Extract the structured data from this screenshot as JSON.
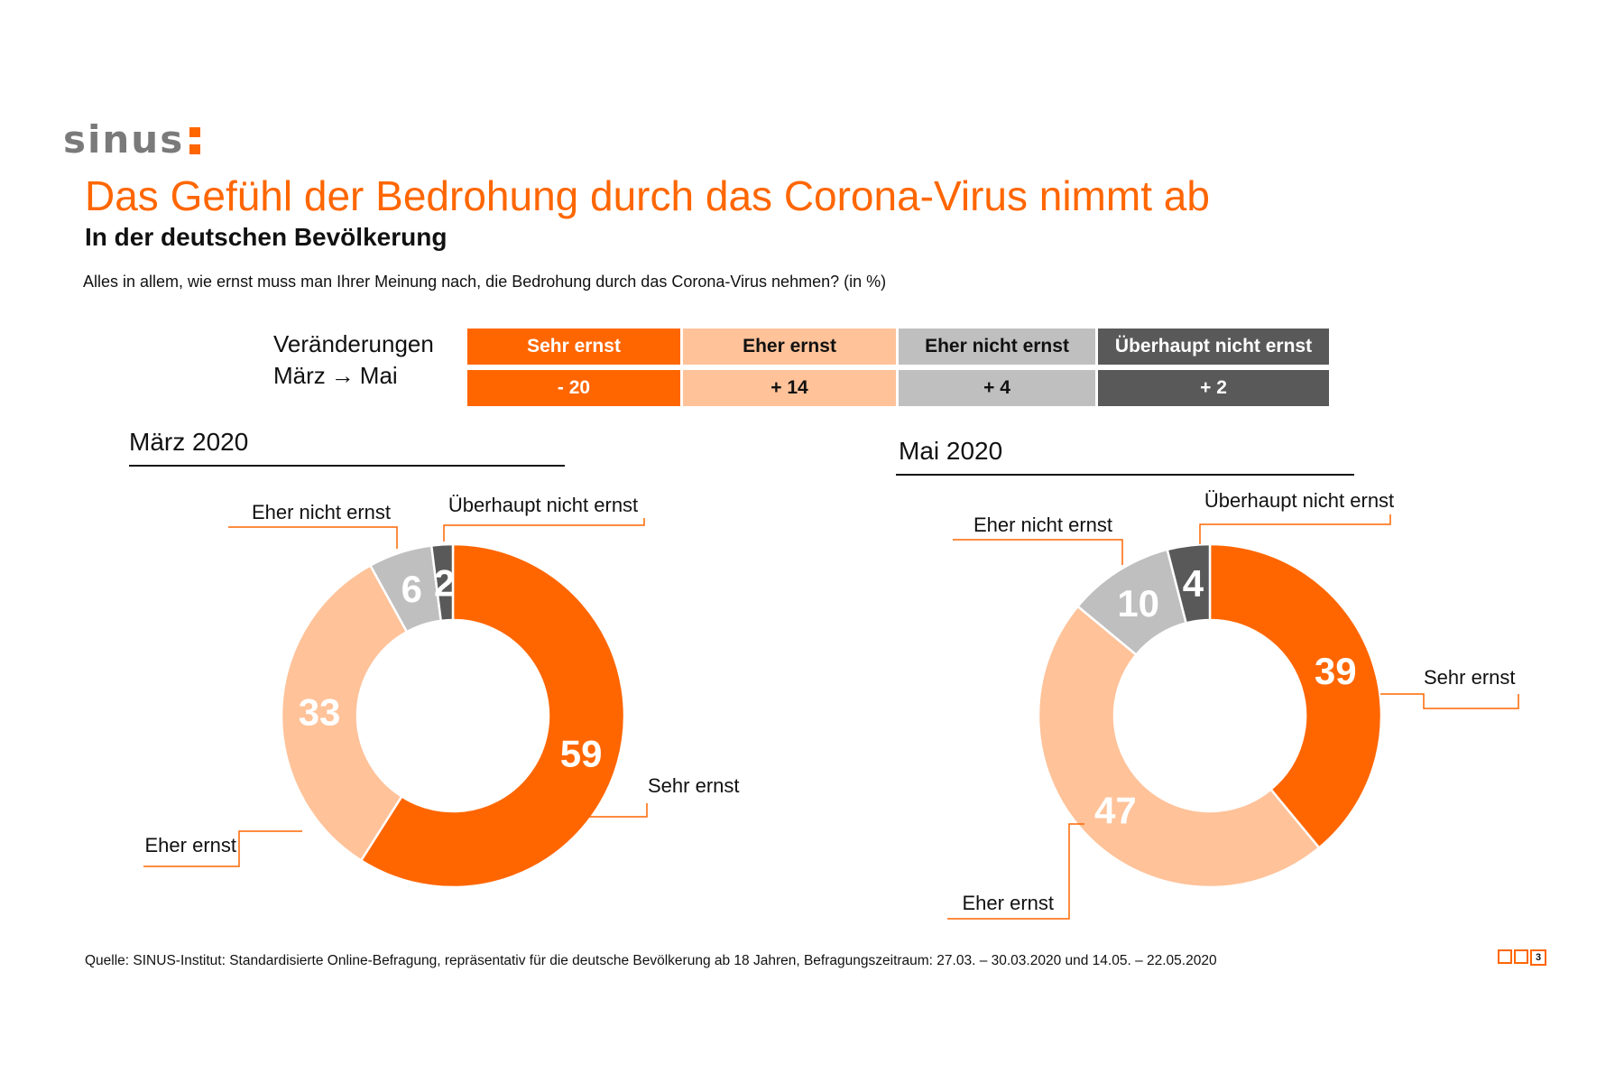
{
  "header": {
    "logo_text": "sinus",
    "title": "Das Gefühl der Bedrohung durch das Corona-Virus nimmt ab",
    "subtitle": "In der deutschen Bevölkerung",
    "question": "Alles in allem, wie ernst muss man Ihrer Meinung nach, die Bedrohung durch das Corona-Virus nehmen? (in %)"
  },
  "changes": {
    "label_line1": "Veränderungen",
    "label_line2_from": "März",
    "label_arrow": "→",
    "label_line2_to": "Mai",
    "columns": [
      {
        "label": "Sehr ernst",
        "value": "- 20",
        "bg": "#ff6600",
        "fg": "#ffffff"
      },
      {
        "label": "Eher ernst",
        "value": "+ 14",
        "bg": "#ffc299",
        "fg": "#111111"
      },
      {
        "label": "Eher nicht ernst",
        "value": "+ 4",
        "bg": "#bfbfbf",
        "fg": "#111111"
      },
      {
        "label": "Überhaupt nicht ernst",
        "value": "+ 2",
        "bg": "#595959",
        "fg": "#ffffff"
      }
    ]
  },
  "colors": {
    "sehr_ernst": "#ff6600",
    "eher_ernst": "#ffc299",
    "eher_nicht_ernst": "#bfbfbf",
    "ueberhaupt_nicht_ernst": "#595959",
    "leader_line": "#ff6600"
  },
  "chart_data": [
    {
      "type": "pie",
      "donut": true,
      "title": "März 2020",
      "categories": [
        "Sehr ernst",
        "Eher ernst",
        "Eher nicht ernst",
        "Überhaupt nicht ernst"
      ],
      "values": [
        59,
        33,
        6,
        2
      ],
      "labels": [
        "59",
        "33",
        "6",
        "2"
      ],
      "colors": [
        "#ff6600",
        "#ffc299",
        "#bfbfbf",
        "#595959"
      ],
      "start": "12 o'clock",
      "direction": "clockwise"
    },
    {
      "type": "pie",
      "donut": true,
      "title": "Mai 2020",
      "categories": [
        "Sehr ernst",
        "Eher ernst",
        "Eher nicht ernst",
        "Überhaupt nicht ernst"
      ],
      "values": [
        39,
        47,
        10,
        4
      ],
      "labels": [
        "39",
        "47",
        "10",
        "4"
      ],
      "colors": [
        "#ff6600",
        "#ffc299",
        "#bfbfbf",
        "#595959"
      ],
      "start": "12 o'clock",
      "direction": "clockwise"
    }
  ],
  "footer": {
    "source": "Quelle: SINUS-Institut: Standardisierte Online-Befragung, repräsentativ für die deutsche Bevölkerung ab 18 Jahren, Befragungszeitraum: 27.03. – 30.03.2020 und 14.05. – 22.05.2020",
    "page_number": "3"
  }
}
